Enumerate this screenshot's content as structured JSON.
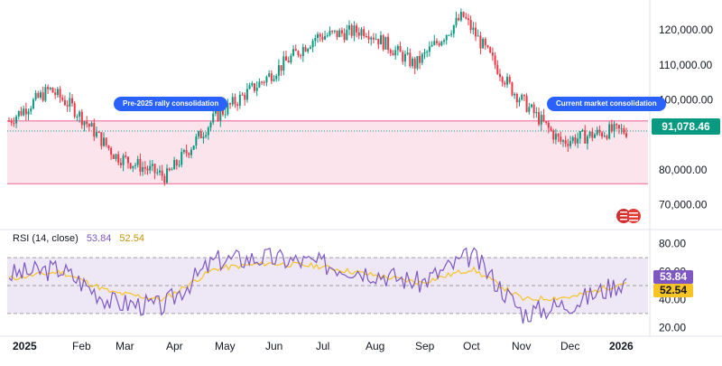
{
  "price_panel": {
    "current_price_label": "91,078.46",
    "y_ticks": [
      "120,000.00",
      "110,000.00",
      "100,000.00",
      "80,000.00",
      "70,000.00"
    ],
    "annotations": [
      "Pre-2025 rally consolidation",
      "Current market consolidation"
    ],
    "colors": {
      "up": "#089981",
      "down": "#f23645",
      "zone_fill": "#fce4ec",
      "zone_line": "#f48fb1",
      "callout": "#2962ff"
    }
  },
  "rsi_panel": {
    "legend_title": "RSI (14, close)",
    "rsi_value": "53.84",
    "ma_value": "52.54",
    "y_ticks": [
      "80.00",
      "60.00",
      "40.00",
      "20.00"
    ],
    "colors": {
      "rsi": "#7e57c2",
      "ma": "#f7c325",
      "band": "#ede7f6"
    }
  },
  "x_axis": {
    "labels": [
      "2025",
      "Feb",
      "Mar",
      "Apr",
      "May",
      "Jun",
      "Jul",
      "Aug",
      "Sep",
      "Oct",
      "Nov",
      "Dec",
      "2026"
    ]
  },
  "chart_data": [
    {
      "type": "candlestick",
      "title": "",
      "x": [
        "2025",
        "Feb",
        "Mar",
        "Apr",
        "May",
        "Jun",
        "Jul",
        "Aug",
        "Sep",
        "Oct",
        "Nov",
        "Dec",
        "2026"
      ],
      "close_path": [
        {
          "x": "2025",
          "y": 94000
        },
        {
          "x": "Jan mid",
          "y": 103000
        },
        {
          "x": "Feb",
          "y": 98000
        },
        {
          "x": "Mar",
          "y": 84000
        },
        {
          "x": "Apr",
          "y": 78000
        },
        {
          "x": "May",
          "y": 95000
        },
        {
          "x": "Jun",
          "y": 106000
        },
        {
          "x": "Jul",
          "y": 118000
        },
        {
          "x": "Aug",
          "y": 120000
        },
        {
          "x": "Sep",
          "y": 110000
        },
        {
          "x": "Oct",
          "y": 124000
        },
        {
          "x": "Nov",
          "y": 103000
        },
        {
          "x": "Dec",
          "y": 88000
        },
        {
          "x": "2026",
          "y": 91078.46
        }
      ],
      "zone": {
        "low": 76000,
        "high": 94000
      },
      "current_price": 91078.46,
      "ylim": [
        65000,
        127000
      ],
      "y_ticks": [
        70000,
        80000,
        100000,
        110000,
        120000
      ],
      "annotations": [
        "Pre-2025 rally consolidation",
        "Current market consolidation"
      ]
    },
    {
      "type": "line",
      "title": "RSI (14, close)",
      "x": [
        "2025",
        "Feb",
        "Mar",
        "Apr",
        "May",
        "Jun",
        "Jul",
        "Aug",
        "Sep",
        "Oct",
        "Nov",
        "Dec",
        "2026"
      ],
      "series": [
        {
          "name": "RSI (14, close)",
          "values": [
            58,
            62,
            38,
            35,
            68,
            70,
            66,
            60,
            52,
            72,
            30,
            38,
            53.84
          ]
        },
        {
          "name": "",
          "values": [
            55,
            60,
            45,
            40,
            62,
            66,
            64,
            58,
            52,
            62,
            40,
            42,
            52.54
          ]
        }
      ],
      "ylim": [
        15,
        85
      ],
      "y_ticks": [
        20,
        40,
        60,
        80
      ],
      "bands": [
        30,
        50,
        70
      ]
    }
  ]
}
